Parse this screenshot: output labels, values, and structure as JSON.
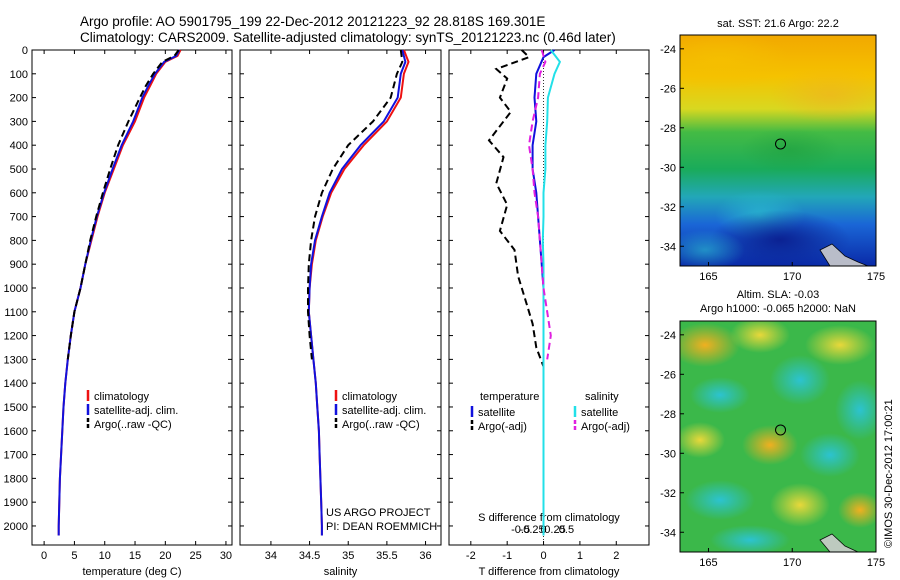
{
  "header": {
    "line1": "Argo profile: AO 5901795_199 22-Dec-2012 20121223_92 28.818S 169.301E",
    "line2": "Climatology: CARS2009. Satellite-adjusted climatology: synTS_20121223.nc (0.46d later)"
  },
  "colors": {
    "climatology": "#ee1111",
    "satellite": "#1111dd",
    "argo": "#000000",
    "salinity_satellite": "#22e0e8",
    "salinity_argo": "#e020e0"
  },
  "chart_data": [
    {
      "type": "line",
      "xlabel": "temperature (deg C)",
      "ylabel": "",
      "xlim": [
        -2,
        31
      ],
      "ylim": [
        2080,
        0
      ],
      "xticks": [
        "0",
        "5",
        "10",
        "15",
        "20",
        "25",
        "30"
      ],
      "xtick_values": [
        0,
        5,
        10,
        15,
        20,
        25,
        30
      ],
      "yticks": [
        "0",
        "100",
        "200",
        "300",
        "400",
        "500",
        "600",
        "700",
        "800",
        "900",
        "1000",
        "1100",
        "1200",
        "1300",
        "1400",
        "1500",
        "1600",
        "1700",
        "1800",
        "1900",
        "2000"
      ],
      "ytick_values": [
        0,
        100,
        200,
        300,
        400,
        500,
        600,
        700,
        800,
        900,
        1000,
        1100,
        1200,
        1300,
        1400,
        1500,
        1600,
        1700,
        1800,
        1900,
        2000
      ],
      "legend": [
        "climatology",
        "satellite-adj. clim.",
        "Argo(..raw -QC)"
      ],
      "series": [
        {
          "name": "climatology",
          "style": "solid",
          "points": [
            [
              22.5,
              0
            ],
            [
              22,
              25
            ],
            [
              20,
              50
            ],
            [
              18.5,
              100
            ],
            [
              17.5,
              150
            ],
            [
              16.5,
              200
            ],
            [
              15,
              300
            ],
            [
              13,
              400
            ],
            [
              11.5,
              500
            ],
            [
              10,
              600
            ],
            [
              8.8,
              700
            ],
            [
              7.8,
              800
            ],
            [
              6.8,
              900
            ],
            [
              6,
              1000
            ],
            [
              5,
              1100
            ],
            [
              4.4,
              1200
            ],
            [
              3.9,
              1300
            ],
            [
              3.5,
              1400
            ],
            [
              3.2,
              1500
            ],
            [
              3,
              1600
            ],
            [
              2.8,
              1700
            ],
            [
              2.6,
              1800
            ],
            [
              2.5,
              1900
            ],
            [
              2.4,
              2000
            ],
            [
              2.4,
              2040
            ]
          ]
        },
        {
          "name": "satellite-adj. clim.",
          "style": "solid",
          "points": [
            [
              22.3,
              0
            ],
            [
              21.8,
              25
            ],
            [
              19.8,
              50
            ],
            [
              18.3,
              100
            ],
            [
              17.2,
              150
            ],
            [
              16.2,
              200
            ],
            [
              14.7,
              300
            ],
            [
              12.8,
              400
            ],
            [
              11.3,
              500
            ],
            [
              9.9,
              600
            ],
            [
              8.7,
              700
            ],
            [
              7.7,
              800
            ],
            [
              6.8,
              900
            ],
            [
              6,
              1000
            ],
            [
              5,
              1100
            ],
            [
              4.4,
              1200
            ],
            [
              3.9,
              1300
            ],
            [
              3.5,
              1400
            ],
            [
              3.2,
              1500
            ],
            [
              3,
              1600
            ],
            [
              2.8,
              1700
            ],
            [
              2.6,
              1800
            ],
            [
              2.5,
              1900
            ],
            [
              2.4,
              2000
            ],
            [
              2.4,
              2040
            ]
          ]
        },
        {
          "name": "Argo(..raw -QC)",
          "style": "dashed",
          "points": [
            [
              22.2,
              0
            ],
            [
              21.5,
              25
            ],
            [
              19.5,
              50
            ],
            [
              18,
              100
            ],
            [
              16.8,
              150
            ],
            [
              15.8,
              200
            ],
            [
              13.9,
              300
            ],
            [
              12.2,
              400
            ],
            [
              10.9,
              500
            ],
            [
              9.7,
              600
            ],
            [
              8.6,
              700
            ],
            [
              7.6,
              800
            ],
            [
              6.8,
              900
            ],
            [
              6,
              1000
            ],
            [
              5,
              1100
            ],
            [
              4.4,
              1200
            ],
            [
              3.9,
              1300
            ]
          ]
        }
      ]
    },
    {
      "type": "line",
      "xlabel": "salinity",
      "ylabel": "",
      "xlim": [
        33.6,
        36.2
      ],
      "ylim": [
        2080,
        0
      ],
      "xticks": [
        "34",
        "34.5",
        "35",
        "35.5",
        "36"
      ],
      "xtick_values": [
        34,
        34.5,
        35,
        35.5,
        36
      ],
      "legend": [
        "climatology",
        "satellite-adj. clim.",
        "Argo(..raw -QC)"
      ],
      "annotation": [
        "US ARGO PROJECT",
        "PI: DEAN ROEMMICH"
      ],
      "series": [
        {
          "name": "climatology",
          "style": "solid",
          "points": [
            [
              35.72,
              0
            ],
            [
              35.78,
              50
            ],
            [
              35.72,
              100
            ],
            [
              35.68,
              200
            ],
            [
              35.5,
              300
            ],
            [
              35.2,
              400
            ],
            [
              34.95,
              500
            ],
            [
              34.78,
              600
            ],
            [
              34.67,
              700
            ],
            [
              34.58,
              800
            ],
            [
              34.53,
              900
            ],
            [
              34.5,
              1000
            ],
            [
              34.49,
              1100
            ],
            [
              34.52,
              1200
            ],
            [
              34.55,
              1300
            ],
            [
              34.58,
              1400
            ],
            [
              34.6,
              1500
            ],
            [
              34.62,
              1600
            ],
            [
              34.63,
              1700
            ],
            [
              34.64,
              1800
            ],
            [
              34.65,
              1900
            ],
            [
              34.66,
              2000
            ],
            [
              34.66,
              2040
            ]
          ]
        },
        {
          "name": "satellite-adj. clim.",
          "style": "solid",
          "points": [
            [
              35.7,
              0
            ],
            [
              35.74,
              50
            ],
            [
              35.68,
              100
            ],
            [
              35.64,
              200
            ],
            [
              35.46,
              300
            ],
            [
              35.16,
              400
            ],
            [
              34.92,
              500
            ],
            [
              34.76,
              600
            ],
            [
              34.66,
              700
            ],
            [
              34.57,
              800
            ],
            [
              34.52,
              900
            ],
            [
              34.5,
              1000
            ],
            [
              34.49,
              1100
            ],
            [
              34.52,
              1200
            ],
            [
              34.55,
              1300
            ],
            [
              34.58,
              1400
            ],
            [
              34.6,
              1500
            ],
            [
              34.62,
              1600
            ],
            [
              34.63,
              1700
            ],
            [
              34.64,
              1800
            ],
            [
              34.65,
              1900
            ],
            [
              34.66,
              2000
            ],
            [
              34.66,
              2040
            ]
          ]
        },
        {
          "name": "Argo(..raw -QC)",
          "style": "dashed",
          "points": [
            [
              35.68,
              0
            ],
            [
              35.7,
              50
            ],
            [
              35.63,
              100
            ],
            [
              35.55,
              200
            ],
            [
              35.32,
              300
            ],
            [
              35.0,
              400
            ],
            [
              34.8,
              500
            ],
            [
              34.66,
              600
            ],
            [
              34.57,
              700
            ],
            [
              34.52,
              800
            ],
            [
              34.49,
              900
            ],
            [
              34.48,
              1000
            ],
            [
              34.48,
              1100
            ],
            [
              34.5,
              1200
            ],
            [
              34.53,
              1300
            ]
          ]
        }
      ]
    },
    {
      "type": "line",
      "xlabel": "T difference from climatology",
      "top_axis_label": "S difference from climatology",
      "xlim": [
        -2.6,
        2.9
      ],
      "ylim": [
        2080,
        0
      ],
      "xticks": [
        "-2",
        "-1",
        "0",
        "1",
        "2"
      ],
      "xtick_values": [
        -2,
        -1,
        0,
        1,
        2
      ],
      "top_ticks": [
        "-0.5",
        "-0.25",
        "0",
        "0.25",
        "0.5"
      ],
      "legend_left_title": "temperature",
      "legend_right_title": "salinity",
      "legend_left": [
        "satellite",
        "Argo(-adj)"
      ],
      "legend_right": [
        "satellite",
        "Argo(-adj)"
      ],
      "series": [
        {
          "name": "satellite",
          "style": "solid",
          "color": "satellite",
          "points": [
            [
              0.3,
              0
            ],
            [
              0.0,
              30
            ],
            [
              -0.2,
              100
            ],
            [
              -0.25,
              200
            ],
            [
              -0.2,
              300
            ],
            [
              -0.3,
              400
            ],
            [
              -0.3,
              500
            ],
            [
              -0.2,
              600
            ],
            [
              -0.15,
              700
            ],
            [
              -0.1,
              800
            ],
            [
              -0.05,
              900
            ],
            [
              0,
              1000
            ],
            [
              0,
              1100
            ],
            [
              0,
              1200
            ],
            [
              0,
              1300
            ],
            [
              0,
              1400
            ],
            [
              0,
              2040
            ]
          ]
        },
        {
          "name": "Argo(-adj)",
          "style": "dashed",
          "color": "argo",
          "points": [
            [
              -0.6,
              0
            ],
            [
              -0.4,
              30
            ],
            [
              -1.3,
              80
            ],
            [
              -1.0,
              120
            ],
            [
              -1.2,
              200
            ],
            [
              -0.9,
              260
            ],
            [
              -1.5,
              380
            ],
            [
              -1.1,
              450
            ],
            [
              -1.3,
              560
            ],
            [
              -1.0,
              650
            ],
            [
              -1.2,
              760
            ],
            [
              -0.8,
              840
            ],
            [
              -0.7,
              950
            ],
            [
              -0.5,
              1050
            ],
            [
              -0.3,
              1150
            ],
            [
              -0.2,
              1250
            ],
            [
              0,
              1330
            ]
          ]
        },
        {
          "name": "satellite",
          "style": "solid",
          "color": "salinity_satellite",
          "points": [
            [
              0.2,
              0
            ],
            [
              0.45,
              50
            ],
            [
              0.3,
              100
            ],
            [
              0.12,
              200
            ],
            [
              0.1,
              300
            ],
            [
              0.05,
              400
            ],
            [
              0.05,
              500
            ],
            [
              0.0,
              600
            ],
            [
              0.0,
              700
            ],
            [
              -0.02,
              800
            ],
            [
              0.0,
              900
            ],
            [
              0.0,
              1000
            ],
            [
              0.0,
              1100
            ],
            [
              0.0,
              1200
            ],
            [
              0.0,
              1300
            ],
            [
              0.0,
              1400
            ],
            [
              0.0,
              2040
            ]
          ]
        },
        {
          "name": "Argo(-adj)",
          "style": "dashed",
          "color": "salinity_argo",
          "points": [
            [
              -0.05,
              0
            ],
            [
              0.05,
              50
            ],
            [
              -0.1,
              100
            ],
            [
              -0.15,
              200
            ],
            [
              -0.3,
              300
            ],
            [
              -0.4,
              400
            ],
            [
              -0.3,
              500
            ],
            [
              -0.25,
              600
            ],
            [
              -0.15,
              700
            ],
            [
              -0.1,
              800
            ],
            [
              -0.05,
              900
            ],
            [
              0.0,
              1000
            ],
            [
              0.1,
              1100
            ],
            [
              0.2,
              1200
            ],
            [
              0.1,
              1300
            ]
          ]
        }
      ]
    },
    {
      "type": "heatmap",
      "title": "sat. SST: 21.6 Argo: 22.2",
      "xlim": [
        163.3,
        175
      ],
      "ylim": [
        -35,
        -23.3
      ],
      "xticks": [
        "165",
        "170",
        "175"
      ],
      "xtick_values": [
        165,
        170,
        175
      ],
      "yticks": [
        "-24",
        "-26",
        "-28",
        "-30",
        "-32",
        "-34"
      ],
      "ytick_values": [
        -24,
        -26,
        -28,
        -30,
        -32,
        -34
      ],
      "marker": {
        "lon": 169.301,
        "lat": -28.818
      }
    },
    {
      "type": "heatmap",
      "title_line1": "Altim. SLA: -0.03",
      "title_line2": "Argo h1000: -0.065 h2000: NaN",
      "xlim": [
        163.3,
        175
      ],
      "ylim": [
        -35,
        -23.3
      ],
      "xticks": [
        "165",
        "170",
        "175"
      ],
      "xtick_values": [
        165,
        170,
        175
      ],
      "yticks": [
        "-24",
        "-26",
        "-28",
        "-30",
        "-32",
        "-34"
      ],
      "ytick_values": [
        -24,
        -26,
        -28,
        -30,
        -32,
        -34
      ],
      "marker": {
        "lon": 169.301,
        "lat": -28.818
      },
      "side_label": "©IMOS 30-Dec-2012 17:00:21"
    }
  ]
}
